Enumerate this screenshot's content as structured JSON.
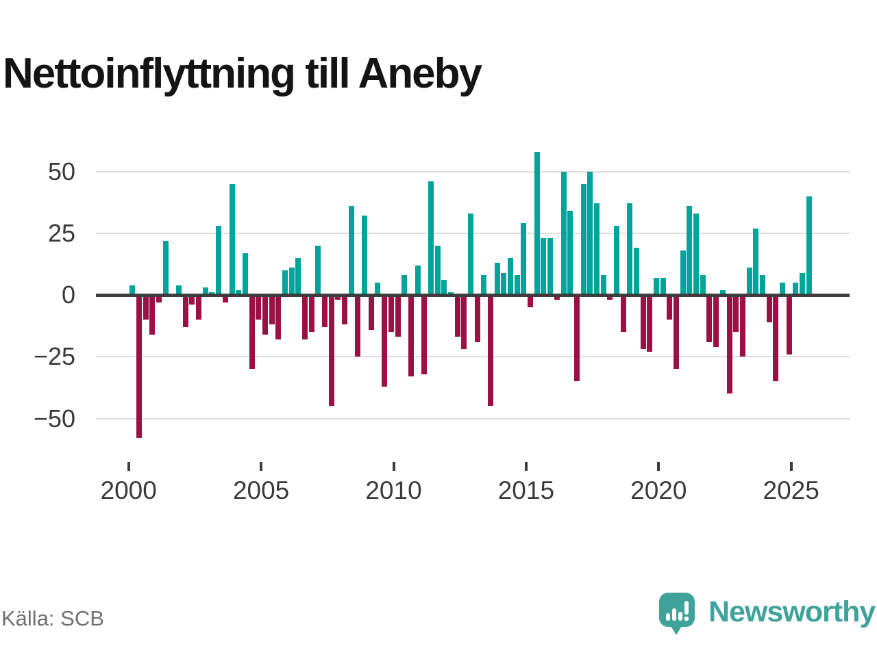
{
  "header": {
    "title": "Nettoinflyttning till Aneby"
  },
  "footer": {
    "source": "Källa: SCB",
    "brand": "Newsworthy"
  },
  "colors": {
    "positive": "#00a49a",
    "negative": "#9b1145",
    "grid": "#dcdcdc",
    "zero_line": "#3d3d3d",
    "axis_text": "#3a3a3a",
    "title_text": "#141414",
    "source_text": "#707070",
    "brand_teal": "#3fa29b"
  },
  "chart_data": {
    "type": "bar",
    "title": "Nettoinflyttning till Aneby",
    "frequency": "quarterly",
    "start_year": 2000,
    "start_quarter": 1,
    "x_axis": {
      "tick_labels": [
        "2000",
        "2005",
        "2010",
        "2015",
        "2020",
        "2025"
      ]
    },
    "y_axis": {
      "tick_labels": [
        "50",
        "25",
        "0",
        "−25",
        "−50"
      ],
      "tick_values": [
        50,
        25,
        0,
        -25,
        -50
      ],
      "range": [
        -62,
        60
      ]
    },
    "grid": true,
    "legend": false,
    "values": [
      4,
      -58,
      -10,
      -16,
      -3,
      22,
      0,
      4,
      -13,
      -4,
      -10,
      3,
      1,
      28,
      -3,
      45,
      2,
      17,
      -30,
      -10,
      -16,
      -12,
      -18,
      10,
      11,
      15,
      -18,
      -15,
      20,
      -13,
      -45,
      -2,
      -12,
      36,
      -25,
      32,
      -14,
      5,
      -37,
      -15,
      -17,
      8,
      -33,
      12,
      -32,
      46,
      20,
      6,
      1,
      -17,
      -22,
      33,
      -19,
      8,
      -45,
      13,
      9,
      15,
      8,
      29,
      -5,
      58,
      23,
      23,
      -2,
      50,
      34,
      -35,
      45,
      50,
      37,
      8,
      -2,
      28,
      -15,
      37,
      19,
      -22,
      -23,
      7,
      7,
      -10,
      -30,
      18,
      36,
      33,
      8,
      -19,
      -21,
      2,
      -40,
      -15,
      -25,
      11,
      27,
      8,
      -11,
      -35,
      5,
      -24,
      5,
      9,
      40
    ]
  }
}
